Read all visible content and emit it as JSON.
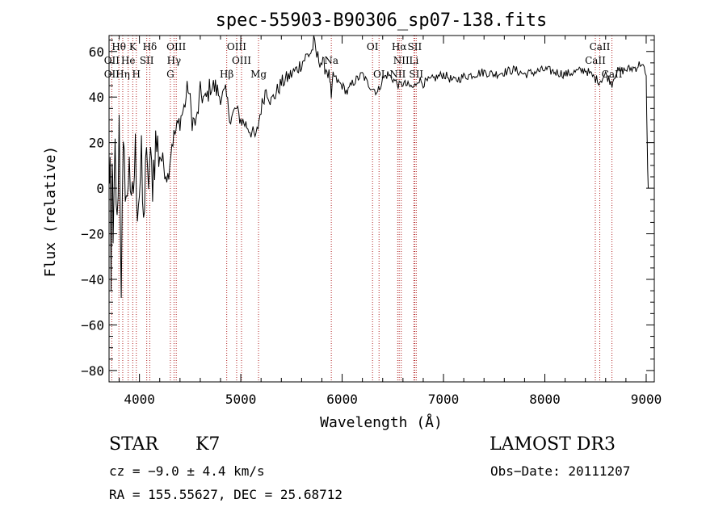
{
  "chart_data": {
    "type": "line",
    "title": "spec-55903-B90306_sp07-138.fits",
    "xlabel": "Wavelength (Å)",
    "ylabel": "Flux (relative)",
    "xlim": [
      3700,
      9080
    ],
    "ylim": [
      -85,
      67
    ],
    "x_ticks": [
      4000,
      5000,
      6000,
      7000,
      8000,
      9000
    ],
    "x_tick_labels": [
      "4000",
      "5000",
      "6000",
      "7000",
      "8000",
      "9000"
    ],
    "y_ticks": [
      -80,
      -60,
      -40,
      -20,
      0,
      20,
      40,
      60
    ],
    "y_tick_labels": [
      "−80",
      "−60",
      "−40",
      "−20",
      "0",
      "20",
      "40",
      "60"
    ],
    "series": [
      {
        "name": "flux",
        "x": [
          3700,
          3710,
          3720,
          3730,
          3740,
          3760,
          3780,
          3800,
          3820,
          3840,
          3860,
          3880,
          3900,
          3920,
          3940,
          3960,
          3980,
          4000,
          4020,
          4040,
          4060,
          4080,
          4100,
          4130,
          4160,
          4200,
          4240,
          4280,
          4320,
          4360,
          4400,
          4440,
          4480,
          4520,
          4560,
          4600,
          4650,
          4700,
          4750,
          4800,
          4850,
          4900,
          4950,
          5000,
          5050,
          5100,
          5150,
          5180,
          5200,
          5250,
          5300,
          5350,
          5400,
          5450,
          5500,
          5550,
          5600,
          5650,
          5700,
          5720,
          5750,
          5800,
          5850,
          5880,
          5893,
          5910,
          5950,
          6000,
          6050,
          6100,
          6150,
          6200,
          6250,
          6300,
          6350,
          6400,
          6450,
          6500,
          6563,
          6600,
          6650,
          6708,
          6750,
          6800,
          6900,
          7000,
          7100,
          7200,
          7300,
          7400,
          7500,
          7600,
          7700,
          7800,
          7900,
          8000,
          8100,
          8200,
          8300,
          8400,
          8500,
          8542,
          8600,
          8662,
          8700,
          8800,
          8900,
          8950,
          8980,
          9000,
          9010,
          9020
        ],
        "y": [
          5,
          10,
          -50,
          20,
          -30,
          15,
          -20,
          30,
          -40,
          10,
          5,
          -10,
          20,
          -15,
          0,
          15,
          -5,
          0,
          10,
          -20,
          15,
          0,
          10,
          5,
          20,
          15,
          10,
          5,
          20,
          25,
          30,
          35,
          45,
          30,
          28,
          42,
          38,
          45,
          44,
          40,
          42,
          30,
          35,
          30,
          28,
          25,
          22,
          30,
          35,
          44,
          38,
          42,
          46,
          48,
          50,
          52,
          55,
          58,
          60,
          64,
          58,
          55,
          52,
          48,
          38,
          50,
          47,
          45,
          42,
          46,
          48,
          50,
          46,
          44,
          42,
          48,
          50,
          48,
          45,
          46,
          45,
          44,
          48,
          46,
          48,
          50,
          47,
          49,
          50,
          51,
          50,
          51,
          52,
          50,
          51,
          52,
          51,
          50,
          51,
          52,
          48,
          47,
          50,
          46,
          51,
          52,
          53,
          55,
          52,
          48,
          20,
          0
        ]
      }
    ],
    "line_labels": [
      {
        "label": "Hθ",
        "x": 3797,
        "tier": 1
      },
      {
        "label": "OII",
        "x": 3727,
        "tier": 2
      },
      {
        "label": "OII",
        "x": 3727,
        "tier": 3
      },
      {
        "label": "He",
        "x": 3889,
        "tier": 2
      },
      {
        "label": "Hη",
        "x": 3835,
        "tier": 3
      },
      {
        "label": "K",
        "x": 3934,
        "tier": 1
      },
      {
        "label": "H",
        "x": 3969,
        "tier": 3
      },
      {
        "label": "Hδ",
        "x": 4102,
        "tier": 1
      },
      {
        "label": "SII",
        "x": 4072,
        "tier": 2
      },
      {
        "label": "OIII",
        "x": 4363,
        "tier": 1
      },
      {
        "label": "Hγ",
        "x": 4341,
        "tier": 2
      },
      {
        "label": "G",
        "x": 4305,
        "tier": 3
      },
      {
        "label": "OIII",
        "x": 4959,
        "tier": 1
      },
      {
        "label": "OIII",
        "x": 5007,
        "tier": 2
      },
      {
        "label": "Hβ",
        "x": 4861,
        "tier": 3
      },
      {
        "label": "Mg",
        "x": 5175,
        "tier": 3
      },
      {
        "label": "Na",
        "x": 5893,
        "tier": 2
      },
      {
        "label": "OI",
        "x": 6300,
        "tier": 1
      },
      {
        "label": "OI",
        "x": 6364,
        "tier": 3
      },
      {
        "label": "Hα",
        "x": 6563,
        "tier": 1
      },
      {
        "label": "SII",
        "x": 6716,
        "tier": 1
      },
      {
        "label": "NII",
        "x": 6583,
        "tier": 2
      },
      {
        "label": "Li",
        "x": 6708,
        "tier": 2
      },
      {
        "label": "NII",
        "x": 6548,
        "tier": 3
      },
      {
        "label": "SII",
        "x": 6731,
        "tier": 3
      },
      {
        "label": "CaII",
        "x": 8542,
        "tier": 1
      },
      {
        "label": "CaII",
        "x": 8498,
        "tier": 2
      },
      {
        "label": "CaII",
        "x": 8662,
        "tier": 3
      }
    ],
    "marker_lines": [
      3727,
      3797,
      3835,
      3889,
      3934,
      3969,
      4072,
      4102,
      4305,
      4341,
      4363,
      4861,
      4959,
      5007,
      5175,
      5893,
      6300,
      6364,
      6548,
      6563,
      6583,
      6708,
      6716,
      6731,
      8498,
      8542,
      8662
    ]
  },
  "info": {
    "class": "STAR",
    "subclass": "K7",
    "survey": "LAMOST DR3",
    "cz": "cz = −9.0 ± 4.4 km/s",
    "obs_date": "Obs−Date: 20111207",
    "radec": "RA = 155.55627, DEC =  25.68712"
  },
  "colors": {
    "line": "#000000",
    "marker": "#b22222",
    "axis": "#000000"
  }
}
